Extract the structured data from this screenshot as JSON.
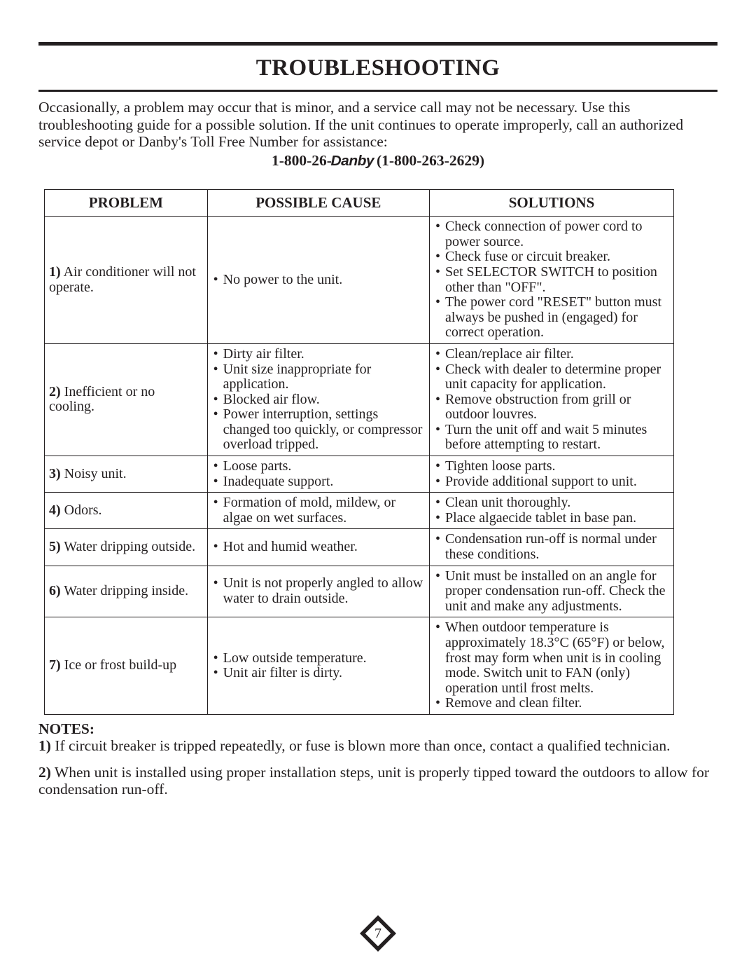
{
  "title": "TROUBLESHOOTING",
  "intro": "Occasionally, a problem may occur that is minor, and a service call may not be necessary. Use this troubleshooting guide for a possible solution. If the unit continues to operate improperly, call an authorized service depot or Danby's Toll Free Number for assistance:",
  "phone": {
    "prefix": "1-800-26-",
    "brand": "Danby",
    "suffix": "  (1-800-263-2629)"
  },
  "headers": {
    "problem": "PROBLEM",
    "cause": "POSSIBLE CAUSE",
    "solution": "SOLUTIONS"
  },
  "rows": [
    {
      "num": "1)",
      "problem": " Air conditioner will not operate.",
      "causes": [
        "No power to the unit."
      ],
      "solutions": [
        "Check connection of power cord to power source.",
        "Check fuse or circuit breaker.",
        "Set SELECTOR SWITCH to position other than \"OFF\".",
        "The power cord \"RESET\" button must always be pushed in (engaged) for correct operation."
      ]
    },
    {
      "num": "2)",
      "problem": " Inefficient or no cooling.",
      "causes": [
        "Dirty air filter.",
        "Unit size inappropriate for application.",
        "Blocked air flow.",
        "Power interruption, settings changed too quickly, or compressor overload tripped."
      ],
      "solutions": [
        "Clean/replace air filter.",
        "Check with dealer to determine proper unit capacity for application.",
        "Remove obstruction from grill or outdoor louvres.",
        "Turn the unit off and wait 5 minutes before attempting to restart."
      ]
    },
    {
      "num": "3)",
      "problem": " Noisy unit.",
      "causes": [
        "Loose parts.",
        "Inadequate support."
      ],
      "solutions": [
        "Tighten loose parts.",
        "Provide additional support to unit."
      ]
    },
    {
      "num": "4)",
      "problem": " Odors.",
      "causes": [
        "Formation of mold, mildew, or algae on wet surfaces."
      ],
      "solutions": [
        "Clean unit thoroughly.",
        "Place algaecide tablet in base pan."
      ]
    },
    {
      "num": "5)",
      "problem": " Water dripping outside.",
      "causes": [
        "Hot and humid weather."
      ],
      "solutions": [
        "Condensation run-off is normal under these conditions."
      ]
    },
    {
      "num": "6)",
      "problem": " Water dripping inside.",
      "causes": [
        "Unit is not properly angled to allow water to drain outside."
      ],
      "solutions": [
        "Unit must be installed on an angle for proper condensation run-off. Check the unit and make any adjustments."
      ]
    },
    {
      "num": "7)",
      "problem": " Ice or frost build-up",
      "causes": [
        "Low outside temperature.",
        "Unit air filter is dirty."
      ],
      "solutions": [
        "When outdoor temperature is approximately 18.3°C (65°F) or below, frost may form when unit is in cooling mode. Switch unit to FAN (only) operation until frost melts.",
        "Remove and clean filter."
      ]
    }
  ],
  "notes": {
    "heading": "NOTES:",
    "items": [
      {
        "num": "1)",
        "text": " If circuit breaker is tripped repeatedly, or fuse is blown more than once, contact a qualified technician."
      },
      {
        "num": "2)",
        "text": " When unit is installed using proper installation steps, unit is properly tipped toward the outdoors to allow for condensation run-off."
      }
    ]
  },
  "pageNumber": "7",
  "colors": {
    "ink": "#231f20"
  }
}
